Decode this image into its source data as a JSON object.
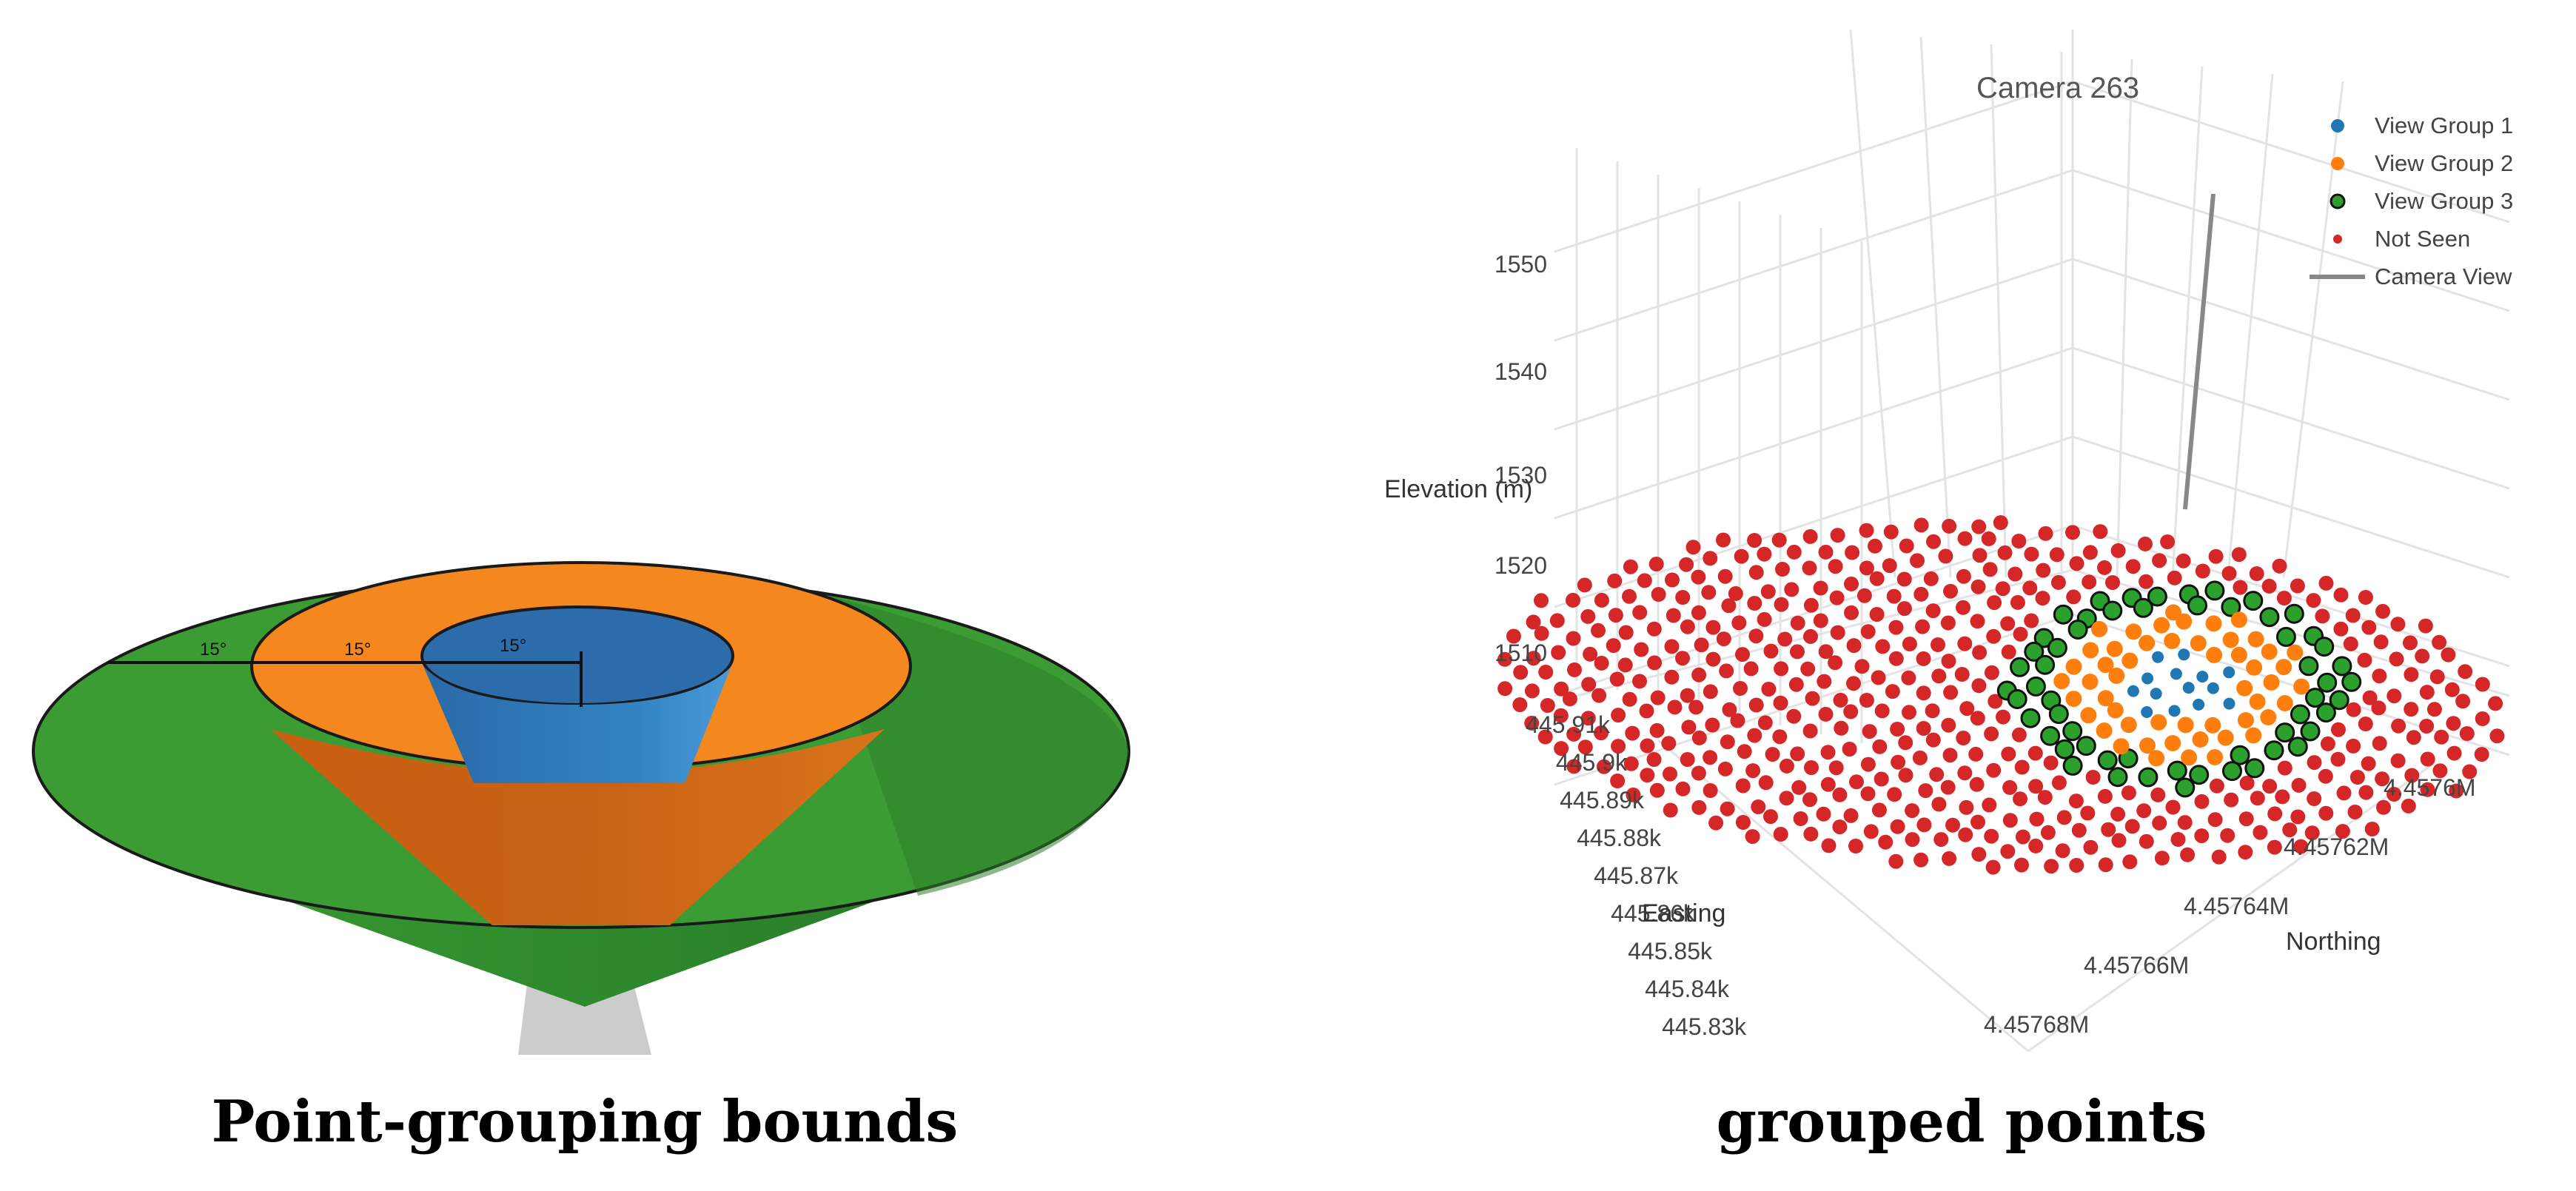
{
  "left_panel": {
    "angle_labels": [
      "15°",
      "15°",
      "15°"
    ],
    "caption": "Point-grouping bounds",
    "colors": {
      "outer": "#3c9c34",
      "middle": "#f5871f",
      "inner": "#2f78b8",
      "camera": "#cccccc"
    }
  },
  "right_panel": {
    "caption": "grouped points",
    "chart_data": {
      "type": "scatter",
      "title": "Camera 263",
      "z_axis": {
        "label": "Elevation (m)",
        "ticks": [
          "1550",
          "1540",
          "1530",
          "1520",
          "1510"
        ]
      },
      "x_axis": {
        "label": "Easting",
        "ticks": [
          "445.91k",
          "445.9k",
          "445.89k",
          "445.88k",
          "445.87k",
          "445.86k",
          "445.85k",
          "445.84k",
          "445.83k"
        ]
      },
      "y_axis": {
        "label": "Northing",
        "ticks": [
          "4.4576M",
          "4.45762M",
          "4.45764M",
          "4.45766M",
          "4.45768M"
        ]
      },
      "legend": {
        "placement": "top-right",
        "entries": [
          {
            "name": "View Group 1",
            "color": "#1f77b4",
            "marker": "dot"
          },
          {
            "name": "View Group 2",
            "color": "#ff7f0e",
            "marker": "dot"
          },
          {
            "name": "View Group 3",
            "color": "#2ca02c",
            "marker": "outlined-dot"
          },
          {
            "name": "Not Seen",
            "color": "#d62728",
            "marker": "small-dot"
          },
          {
            "name": "Camera View",
            "color": "#888888",
            "marker": "line"
          }
        ]
      },
      "grid": true
    }
  }
}
